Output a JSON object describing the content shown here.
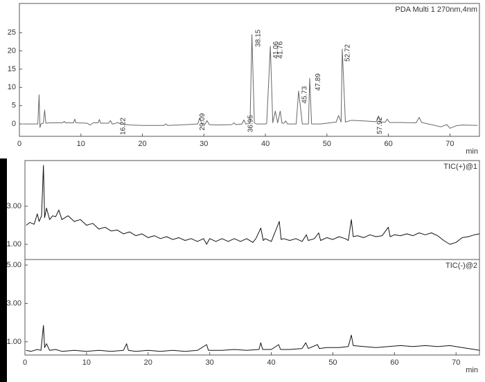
{
  "chart_data": [
    {
      "type": "line",
      "title": "PDA Multi 1 270nm,4nm",
      "xlabel": "min",
      "color": "#666666",
      "xlim": [
        0,
        74.8
      ],
      "xticks": [
        0,
        10,
        20,
        30,
        40,
        50,
        60,
        70
      ],
      "ylim": [
        -3.4,
        33
      ],
      "yticks": [
        0,
        5,
        10,
        15,
        20,
        25
      ],
      "peak_labels": [
        16.22,
        29.09,
        36.95,
        38.15,
        41.06,
        41.76,
        45.73,
        47.89,
        52.72,
        57.92
      ],
      "x": [
        0.5,
        2.5,
        3.0,
        3.2,
        3.35,
        3.5,
        3.9,
        4.1,
        4.3,
        5,
        7,
        7.3,
        7.5,
        8.8,
        9,
        9.2,
        11,
        11.5,
        12,
        12.8,
        13,
        13.2,
        14.5,
        14.8,
        15.1,
        15.6,
        15.9,
        16.2,
        16.5,
        18,
        20,
        23.5,
        23.8,
        24.1,
        26,
        29,
        29.3,
        29.7,
        30.2,
        30.5,
        30.9,
        32,
        34.5,
        34.9,
        35.2,
        36.2,
        36.5,
        36.8,
        37.5,
        37.8,
        38.2,
        38.5,
        40,
        40.2,
        40.8,
        41.2,
        41.6,
        42,
        42.4,
        42.7,
        43,
        43.3,
        43.6,
        45,
        45.4,
        45.8,
        46,
        47,
        47.2,
        47.5,
        49,
        51.5,
        51.9,
        52.3,
        52.5,
        53,
        54,
        56,
        58,
        58.4,
        58.7,
        59.5,
        59.8,
        60.2,
        62,
        64.5,
        65,
        65.4,
        67,
        68.5,
        69.5,
        70,
        71,
        72,
        74.5
      ],
      "values": [
        0,
        0,
        0,
        8,
        -1,
        0,
        0.2,
        3.8,
        0.2,
        0.3,
        0.3,
        0.7,
        0.3,
        0.3,
        1.3,
        0.3,
        0.2,
        -0.3,
        0.3,
        0.3,
        1.2,
        0.2,
        0.2,
        0.9,
        0,
        0.1,
        0.4,
        0.2,
        0,
        -0.3,
        -0.4,
        -0.4,
        0,
        -0.4,
        -0.3,
        0,
        1.6,
        0,
        0,
        0.9,
        -0.2,
        -0.3,
        -0.2,
        0.3,
        -0.2,
        0,
        1.1,
        0,
        0.1,
        24.5,
        0.3,
        0,
        0,
        0.1,
        21.3,
        0.3,
        3.5,
        0.3,
        3.5,
        0.2,
        0.2,
        0.8,
        0,
        0,
        9,
        3,
        0,
        0,
        12.5,
        0,
        0,
        0.5,
        2.3,
        0.5,
        20.5,
        0.5,
        1,
        0.8,
        0.6,
        2.2,
        0.5,
        0.5,
        1.3,
        0.4,
        0.4,
        0.3,
        1.8,
        0.4,
        -0.2,
        -0.8,
        -0.2,
        -1.2,
        -0.5,
        -0.3,
        -0.4
      ]
    },
    {
      "type": "line",
      "title": "TIC(+)@1",
      "color": "#111111",
      "xlim": [
        0,
        73.8
      ],
      "ylim": [
        0.2,
        5.4
      ],
      "yticks": [
        {
          "value": 1,
          "label": "1.00"
        },
        {
          "value": 3,
          "label": "3.00"
        }
      ],
      "x": [
        0.2,
        0.8,
        1.5,
        2.0,
        2.3,
        2.7,
        3.0,
        3.2,
        3.5,
        4,
        4.5,
        5,
        5.5,
        6,
        7,
        8,
        9,
        10,
        11,
        12,
        13,
        14,
        15,
        16,
        17,
        18,
        19,
        20,
        21,
        22,
        23,
        24,
        25,
        26,
        27,
        28,
        29,
        29.5,
        30,
        31,
        32,
        33,
        34,
        35,
        36,
        37,
        37.5,
        38.3,
        38.7,
        39,
        40,
        41.3,
        41.6,
        42,
        43,
        44,
        45,
        45.7,
        46,
        47,
        47.7,
        48,
        49,
        50,
        51,
        52,
        52.5,
        53,
        53.3,
        54,
        55,
        56,
        57,
        58,
        59,
        59.3,
        60,
        61,
        62,
        63,
        64,
        65,
        66,
        67,
        68,
        69,
        70,
        71,
        72,
        73,
        73.8
      ],
      "values": [
        2.0,
        2.15,
        2.05,
        2.6,
        2.2,
        2.5,
        5.15,
        2.4,
        2.9,
        2.3,
        2.5,
        2.45,
        2.8,
        2.3,
        2.5,
        2.2,
        2.3,
        2.0,
        2.1,
        1.8,
        1.9,
        1.7,
        1.75,
        1.55,
        1.65,
        1.45,
        1.55,
        1.35,
        1.45,
        1.3,
        1.4,
        1.25,
        1.35,
        1.2,
        1.3,
        1.15,
        1.3,
        1.0,
        1.3,
        1.15,
        1.3,
        1.15,
        1.3,
        1.15,
        1.3,
        1.1,
        1.3,
        1.85,
        1.2,
        1.3,
        1.15,
        2.2,
        1.25,
        1.3,
        1.2,
        1.3,
        1.15,
        1.5,
        1.2,
        1.3,
        1.6,
        1.2,
        1.35,
        1.25,
        1.4,
        1.3,
        1.2,
        2.3,
        1.4,
        1.45,
        1.35,
        1.5,
        1.4,
        1.45,
        1.9,
        1.4,
        1.5,
        1.45,
        1.55,
        1.45,
        1.6,
        1.5,
        1.6,
        1.45,
        1.2,
        1.0,
        1.1,
        1.35,
        1.4,
        1.5,
        1.55
      ]
    },
    {
      "type": "line",
      "title": "TIC(-)@2",
      "xlabel": "min",
      "color": "#111111",
      "xlim": [
        0,
        73.8
      ],
      "xticks": [
        0,
        10,
        20,
        30,
        40,
        50,
        60,
        70
      ],
      "ylim": [
        0.31,
        5.29
      ],
      "yticks": [
        {
          "value": 1,
          "label": "1.00"
        },
        {
          "value": 3,
          "label": "3.00"
        },
        {
          "value": 5,
          "label": "5.00"
        }
      ],
      "x": [
        0.2,
        1,
        2,
        2.6,
        3.0,
        3.2,
        3.5,
        4,
        5,
        6,
        8,
        10,
        12,
        14,
        16,
        16.5,
        16.8,
        18,
        20,
        22,
        24,
        26,
        28,
        29.5,
        29.8,
        32,
        34,
        36,
        38,
        38.3,
        38.6,
        40,
        41.2,
        41.5,
        43,
        45,
        45.6,
        46,
        47.5,
        47.8,
        49,
        51,
        52.5,
        53,
        53.3,
        55,
        57,
        59,
        61,
        63,
        65,
        67,
        69,
        71,
        73,
        73.8
      ],
      "values": [
        0.55,
        0.5,
        0.6,
        0.55,
        1.85,
        0.7,
        0.9,
        0.55,
        0.6,
        0.5,
        0.55,
        0.5,
        0.55,
        0.5,
        0.55,
        0.9,
        0.55,
        0.5,
        0.55,
        0.5,
        0.55,
        0.5,
        0.55,
        0.85,
        0.55,
        0.55,
        0.6,
        0.55,
        0.6,
        0.95,
        0.6,
        0.6,
        0.85,
        0.6,
        0.6,
        0.65,
        0.95,
        0.65,
        0.85,
        0.65,
        0.7,
        0.7,
        0.75,
        1.35,
        0.8,
        0.75,
        0.7,
        0.75,
        0.8,
        0.75,
        0.8,
        0.75,
        0.8,
        0.7,
        0.6,
        0.55
      ]
    }
  ]
}
